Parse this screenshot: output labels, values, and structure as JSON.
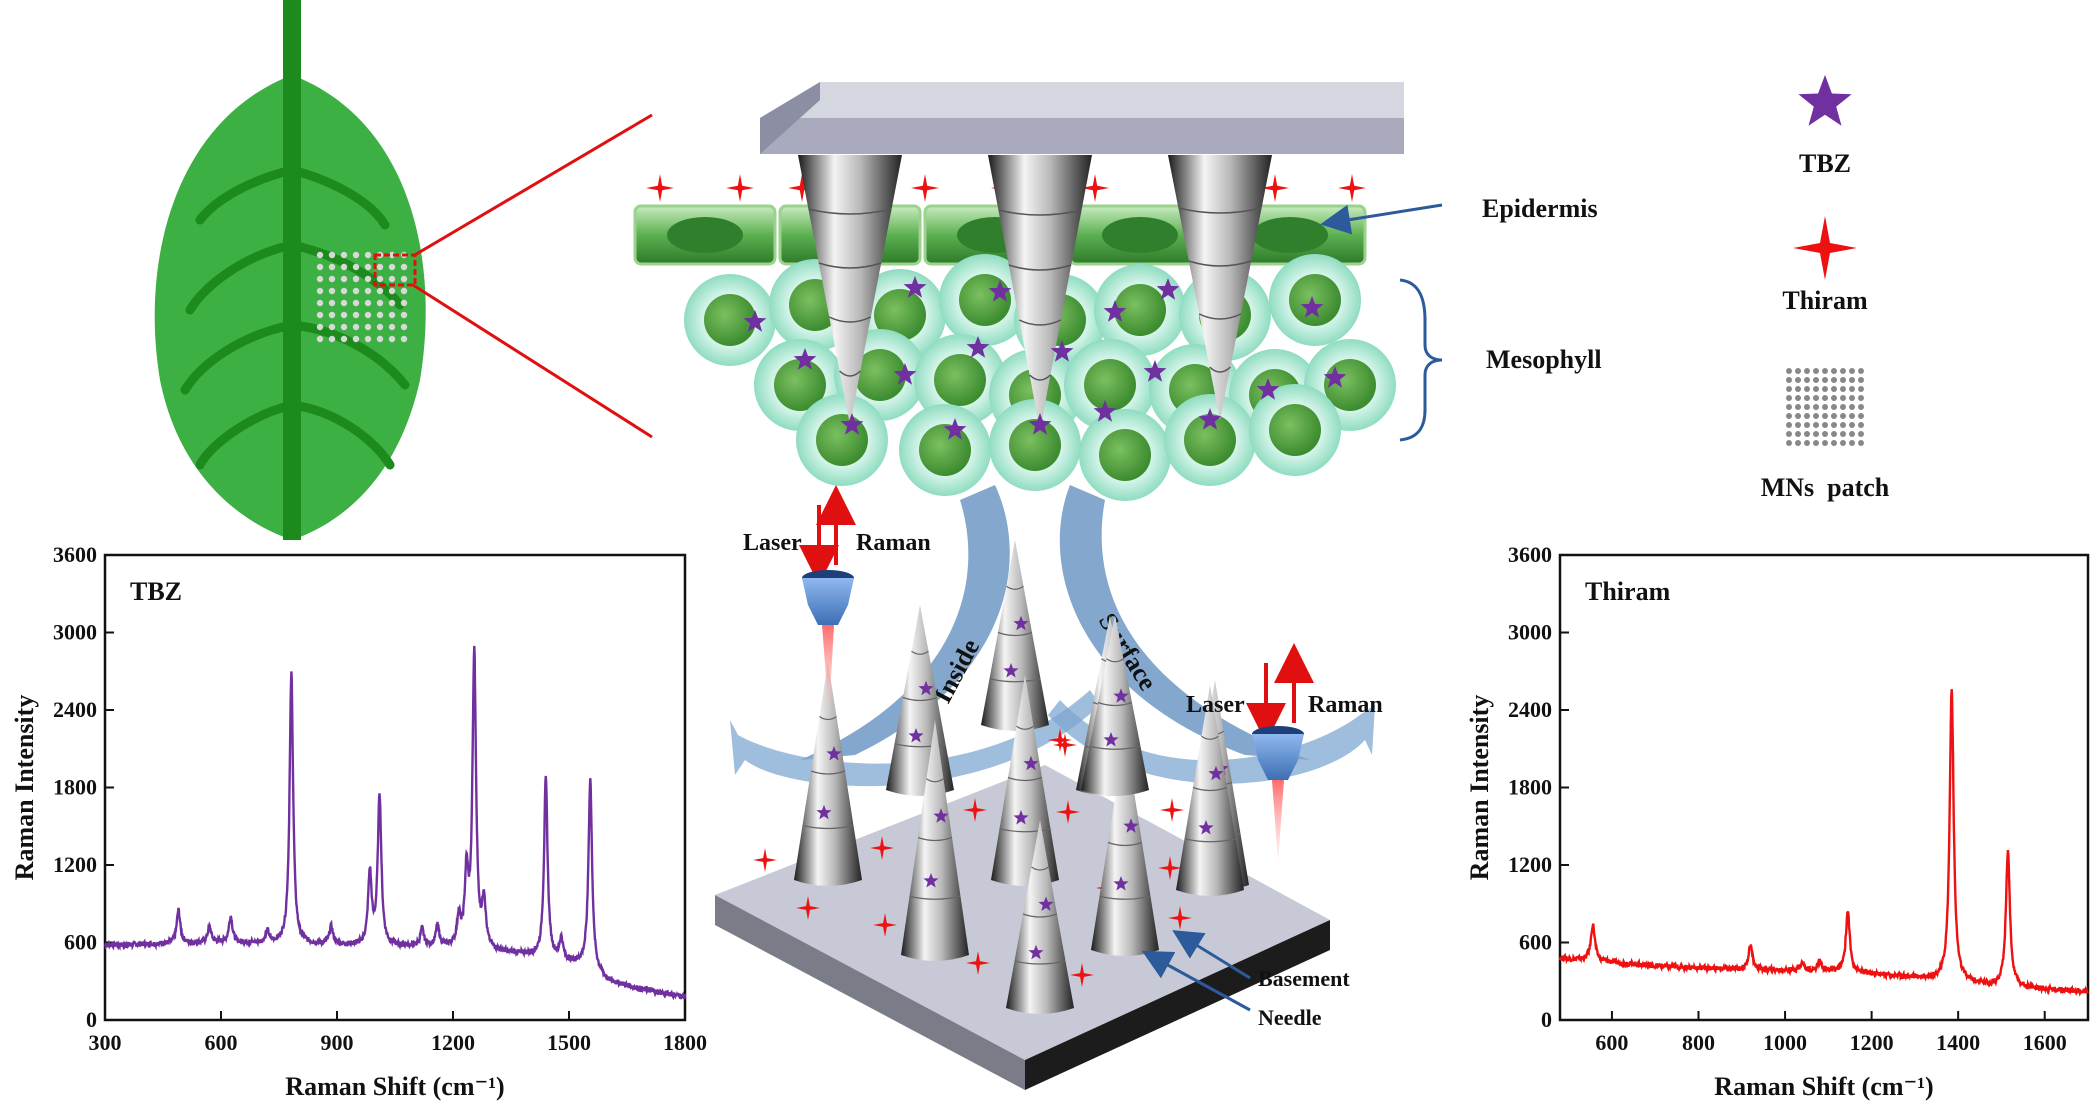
{
  "labels": {
    "epidermis": "Epidermis",
    "mesophyll": "Mesophyll",
    "laser": "Laser",
    "raman": "Raman",
    "inside": "Inside",
    "surface": "Surface",
    "basement": "Basement",
    "needle": "Needle"
  },
  "legend": {
    "tbz": "TBZ",
    "thiram": "Thiram",
    "mns_patch": "MNs  patch"
  },
  "colors": {
    "leaf": "#3cb043",
    "leaf_vein": "#1c8a1c",
    "tbz_star": "#7030a0",
    "thiram_star": "#ee1111",
    "arrow": "#6f98c4",
    "cell_outer": "#b8eedd",
    "cell_inner": "#58a840"
  },
  "chart_data": [
    {
      "type": "line",
      "title": "TBZ",
      "xlabel": "Raman Shift (cm⁻¹)",
      "ylabel": "Raman Intensity",
      "xlim": [
        300,
        1800
      ],
      "ylim": [
        0,
        3600
      ],
      "xticks": [
        300,
        600,
        900,
        1200,
        1500,
        1800
      ],
      "yticks": [
        0,
        600,
        1200,
        1800,
        2400,
        3000,
        3600
      ],
      "color": "#7030a0",
      "baseline": [
        [
          300,
          580
        ],
        [
          600,
          600
        ],
        [
          900,
          580
        ],
        [
          1200,
          560
        ],
        [
          1400,
          500
        ],
        [
          1550,
          420
        ],
        [
          1600,
          300
        ],
        [
          1700,
          230
        ],
        [
          1800,
          180
        ]
      ],
      "peaks": [
        {
          "x": 490,
          "y": 850
        },
        {
          "x": 570,
          "y": 720
        },
        {
          "x": 625,
          "y": 800
        },
        {
          "x": 720,
          "y": 680
        },
        {
          "x": 782,
          "y": 2680
        },
        {
          "x": 885,
          "y": 720
        },
        {
          "x": 985,
          "y": 1130
        },
        {
          "x": 1010,
          "y": 1740
        },
        {
          "x": 1120,
          "y": 700
        },
        {
          "x": 1160,
          "y": 720
        },
        {
          "x": 1215,
          "y": 780
        },
        {
          "x": 1235,
          "y": 1100
        },
        {
          "x": 1255,
          "y": 2820
        },
        {
          "x": 1280,
          "y": 900
        },
        {
          "x": 1440,
          "y": 1860
        },
        {
          "x": 1480,
          "y": 620
        },
        {
          "x": 1555,
          "y": 1860
        }
      ]
    },
    {
      "type": "line",
      "title": "Thiram",
      "xlabel": "Raman Shift (cm⁻¹)",
      "ylabel": "Raman Intensity",
      "xlim": [
        480,
        1700
      ],
      "ylim": [
        0,
        3600
      ],
      "xticks": [
        600,
        800,
        1000,
        1200,
        1400,
        1600
      ],
      "yticks": [
        0,
        600,
        1200,
        1800,
        2400,
        3000,
        3600
      ],
      "color": "#ee1111",
      "baseline": [
        [
          480,
          480
        ],
        [
          700,
          420
        ],
        [
          900,
          390
        ],
        [
          1100,
          380
        ],
        [
          1300,
          330
        ],
        [
          1500,
          260
        ],
        [
          1700,
          220
        ]
      ],
      "peaks": [
        {
          "x": 556,
          "y": 740
        },
        {
          "x": 920,
          "y": 580
        },
        {
          "x": 1040,
          "y": 440
        },
        {
          "x": 1080,
          "y": 450
        },
        {
          "x": 1145,
          "y": 840
        },
        {
          "x": 1385,
          "y": 2560
        },
        {
          "x": 1515,
          "y": 1310
        }
      ]
    }
  ]
}
